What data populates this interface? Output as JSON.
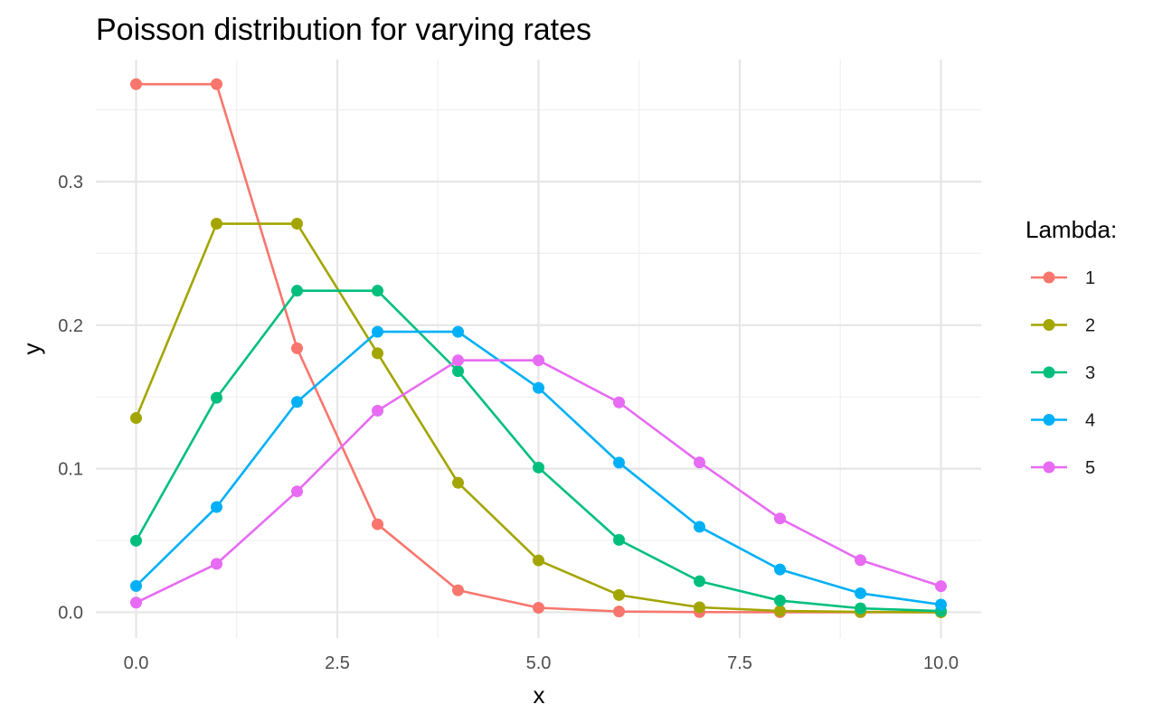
{
  "chart_data": {
    "type": "line",
    "title": "Poisson distribution for varying rates",
    "xlabel": "x",
    "ylabel": "y",
    "xlim": [
      -0.5,
      10.5
    ],
    "ylim": [
      -0.018,
      0.385
    ],
    "x_ticks": [
      0.0,
      2.5,
      5.0,
      7.5,
      10.0
    ],
    "x_tick_labels": [
      "0.0",
      "2.5",
      "5.0",
      "7.5",
      "10.0"
    ],
    "x_minor": [
      1.25,
      3.75,
      6.25,
      8.75
    ],
    "y_ticks": [
      0.0,
      0.1,
      0.2,
      0.3
    ],
    "y_tick_labels": [
      "0.0",
      "0.1",
      "0.2",
      "0.3"
    ],
    "y_minor": [
      0.05,
      0.15,
      0.25,
      0.35
    ],
    "grid": true,
    "legend": {
      "title": "Lambda:",
      "position": "right"
    },
    "x": [
      0,
      1,
      2,
      3,
      4,
      5,
      6,
      7,
      8,
      9,
      10
    ],
    "series": [
      {
        "name": "1",
        "color": "#F8766D",
        "values": [
          0.3679,
          0.3679,
          0.1839,
          0.0613,
          0.0153,
          0.0031,
          0.0005,
          0.0001,
          0.0,
          0.0,
          0.0
        ]
      },
      {
        "name": "2",
        "color": "#A3A500",
        "values": [
          0.1353,
          0.2707,
          0.2707,
          0.1804,
          0.0902,
          0.0361,
          0.012,
          0.0034,
          0.0009,
          0.0002,
          0.0
        ]
      },
      {
        "name": "3",
        "color": "#00BF7D",
        "values": [
          0.0498,
          0.1494,
          0.224,
          0.224,
          0.168,
          0.1008,
          0.0504,
          0.0216,
          0.0081,
          0.0027,
          0.0008
        ]
      },
      {
        "name": "4",
        "color": "#00B0F6",
        "values": [
          0.0183,
          0.0733,
          0.1465,
          0.1954,
          0.1954,
          0.1563,
          0.1042,
          0.0595,
          0.0298,
          0.0132,
          0.0053
        ]
      },
      {
        "name": "5",
        "color": "#E76BF3",
        "values": [
          0.0067,
          0.0337,
          0.0842,
          0.1404,
          0.1755,
          0.1755,
          0.1462,
          0.1044,
          0.0653,
          0.0363,
          0.0181
        ]
      }
    ]
  }
}
